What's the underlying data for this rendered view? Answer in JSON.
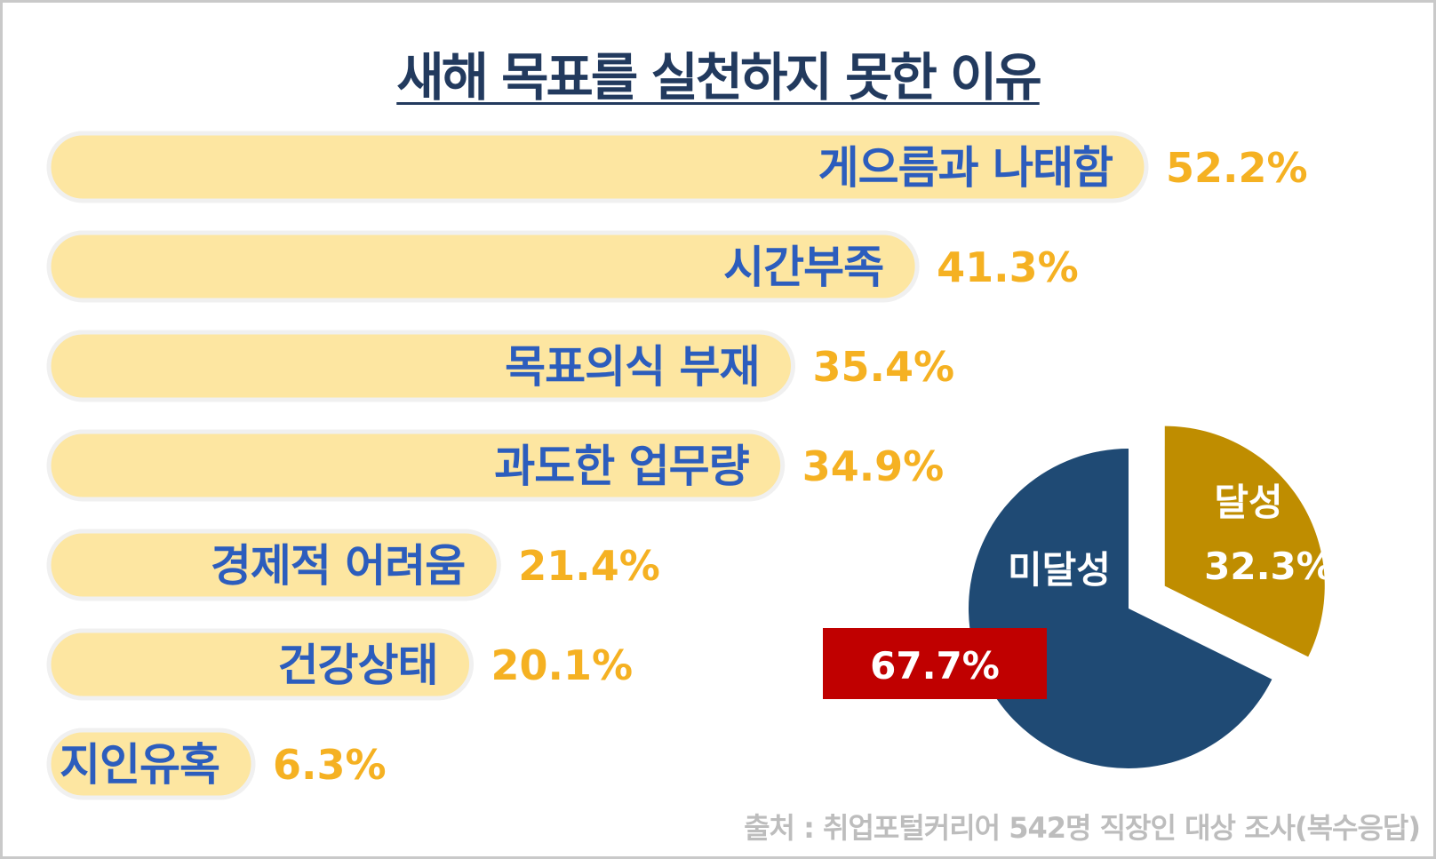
{
  "title": "새해 목표를 실천하지 못한 이유",
  "source": "출처 : 취업포털커리어 542명 직장인 대상 조사(복수응답)",
  "colors": {
    "title": "#223a5e",
    "bar_fill": "#fde6a1",
    "bar_outline": "#f0f0f0",
    "bar_label": "#2c5dbd",
    "value_text": "#f5b122",
    "pie_not_achieved": "#1f4a74",
    "pie_achieved": "#bf8d00",
    "highlight_box": "#c00000"
  },
  "chart_data": [
    {
      "type": "bar",
      "orientation": "horizontal",
      "categories": [
        "게으름과 나태함",
        "시간부족",
        "목표의식 부재",
        "과도한 업무량",
        "경제적 어려움",
        "건강상태",
        "지인유혹"
      ],
      "values": [
        52.2,
        41.3,
        35.4,
        34.9,
        21.4,
        20.1,
        6.3
      ],
      "value_labels": [
        "52.2%",
        "41.3%",
        "35.4%",
        "34.9%",
        "21.4%",
        "20.1%",
        "6.3%"
      ]
    },
    {
      "type": "pie",
      "slices": [
        {
          "label": "미달성",
          "value": 67.7,
          "value_label": "67.7%"
        },
        {
          "label": "달성",
          "value": 32.3,
          "value_label": "32.3%"
        }
      ]
    }
  ]
}
